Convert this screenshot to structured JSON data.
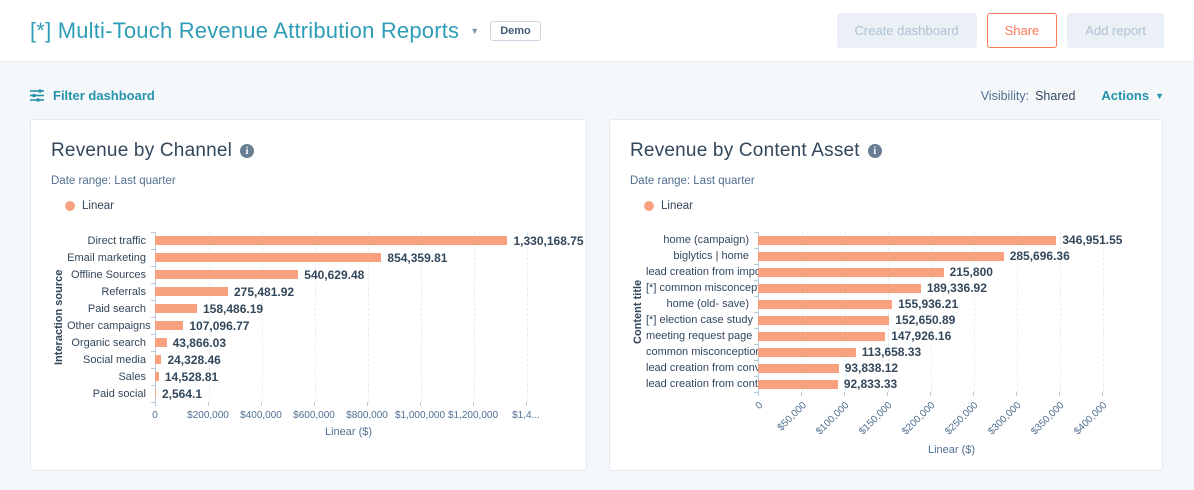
{
  "colors": {
    "accent": "#ff7a59",
    "bar": "#f8a17e",
    "title-teal": "#2e9db7",
    "link-teal": "#2693ae",
    "heading": "#33475b",
    "muted": "#516f90",
    "page-bg": "#f5f8fa"
  },
  "header": {
    "title": "[*] Multi-Touch Revenue Attribution Reports",
    "badge": "Demo",
    "create_dashboard_label": "Create dashboard",
    "share_label": "Share",
    "add_report_label": "Add report"
  },
  "toolbar": {
    "filter_label": "Filter dashboard",
    "visibility_label": "Visibility:",
    "visibility_value": "Shared",
    "actions_label": "Actions"
  },
  "chart_data": [
    {
      "type": "bar",
      "orientation": "horizontal",
      "title": "Revenue by Channel",
      "date_range": "Date range: Last quarter",
      "legend": "Linear",
      "xlabel": "Linear ($)",
      "ylabel": "Interaction source",
      "grid": true,
      "xlim": [
        0,
        1400000
      ],
      "categories": [
        "Direct traffic",
        "Email marketing",
        "Offline Sources",
        "Referrals",
        "Paid search",
        "Other campaigns",
        "Organic search",
        "Social media",
        "Sales",
        "Paid social"
      ],
      "values": [
        1330168.75,
        854359.81,
        540629.48,
        275481.92,
        158486.19,
        107096.77,
        43866.03,
        24328.46,
        14528.81,
        2564.1
      ],
      "value_labels": [
        "1,330,168.75",
        "854,359.81",
        "540,629.48",
        "275,481.92",
        "158,486.19",
        "107,096.77",
        "43,866.03",
        "24,328.46",
        "14,528.81",
        "2,564.1"
      ],
      "xticks": [
        {
          "value": 0,
          "label": "0"
        },
        {
          "value": 200000,
          "label": "$200,000"
        },
        {
          "value": 400000,
          "label": "$400,000"
        },
        {
          "value": 600000,
          "label": "$600,000"
        },
        {
          "value": 800000,
          "label": "$800,000"
        },
        {
          "value": 1000000,
          "label": "$1,000,000"
        },
        {
          "value": 1200000,
          "label": "$1,200,000"
        },
        {
          "value": 1400000,
          "label": "$1,4..."
        }
      ]
    },
    {
      "type": "bar",
      "orientation": "horizontal",
      "title": "Revenue by Content Asset",
      "date_range": "Date range: Last quarter",
      "legend": "Linear",
      "xlabel": "Linear ($)",
      "ylabel": "Content title",
      "grid": true,
      "xlim": [
        0,
        400000
      ],
      "xtick_rotation": 45,
      "categories": [
        "home (campaign)",
        "biglytics | home",
        "lead creation from impor...",
        "[*] common misconcepti...",
        "home (old- save)",
        "[*] election case study",
        "meeting request page",
        "common misconception...",
        "lead creation from conve...",
        "lead creation from conta..."
      ],
      "values": [
        346951.55,
        285696.36,
        215800,
        189336.92,
        155936.21,
        152650.89,
        147926.16,
        113658.33,
        93838.12,
        92833.33
      ],
      "value_labels": [
        "346,951.55",
        "285,696.36",
        "215,800",
        "189,336.92",
        "155,936.21",
        "152,650.89",
        "147,926.16",
        "113,658.33",
        "93,838.12",
        "92,833.33"
      ],
      "xticks": [
        {
          "value": 0,
          "label": "0"
        },
        {
          "value": 50000,
          "label": "$50,000"
        },
        {
          "value": 100000,
          "label": "$100,000"
        },
        {
          "value": 150000,
          "label": "$150,000"
        },
        {
          "value": 200000,
          "label": "$200,000"
        },
        {
          "value": 250000,
          "label": "$250,000"
        },
        {
          "value": 300000,
          "label": "$300,000"
        },
        {
          "value": 350000,
          "label": "$350,000"
        },
        {
          "value": 400000,
          "label": "$400,000"
        }
      ]
    }
  ]
}
